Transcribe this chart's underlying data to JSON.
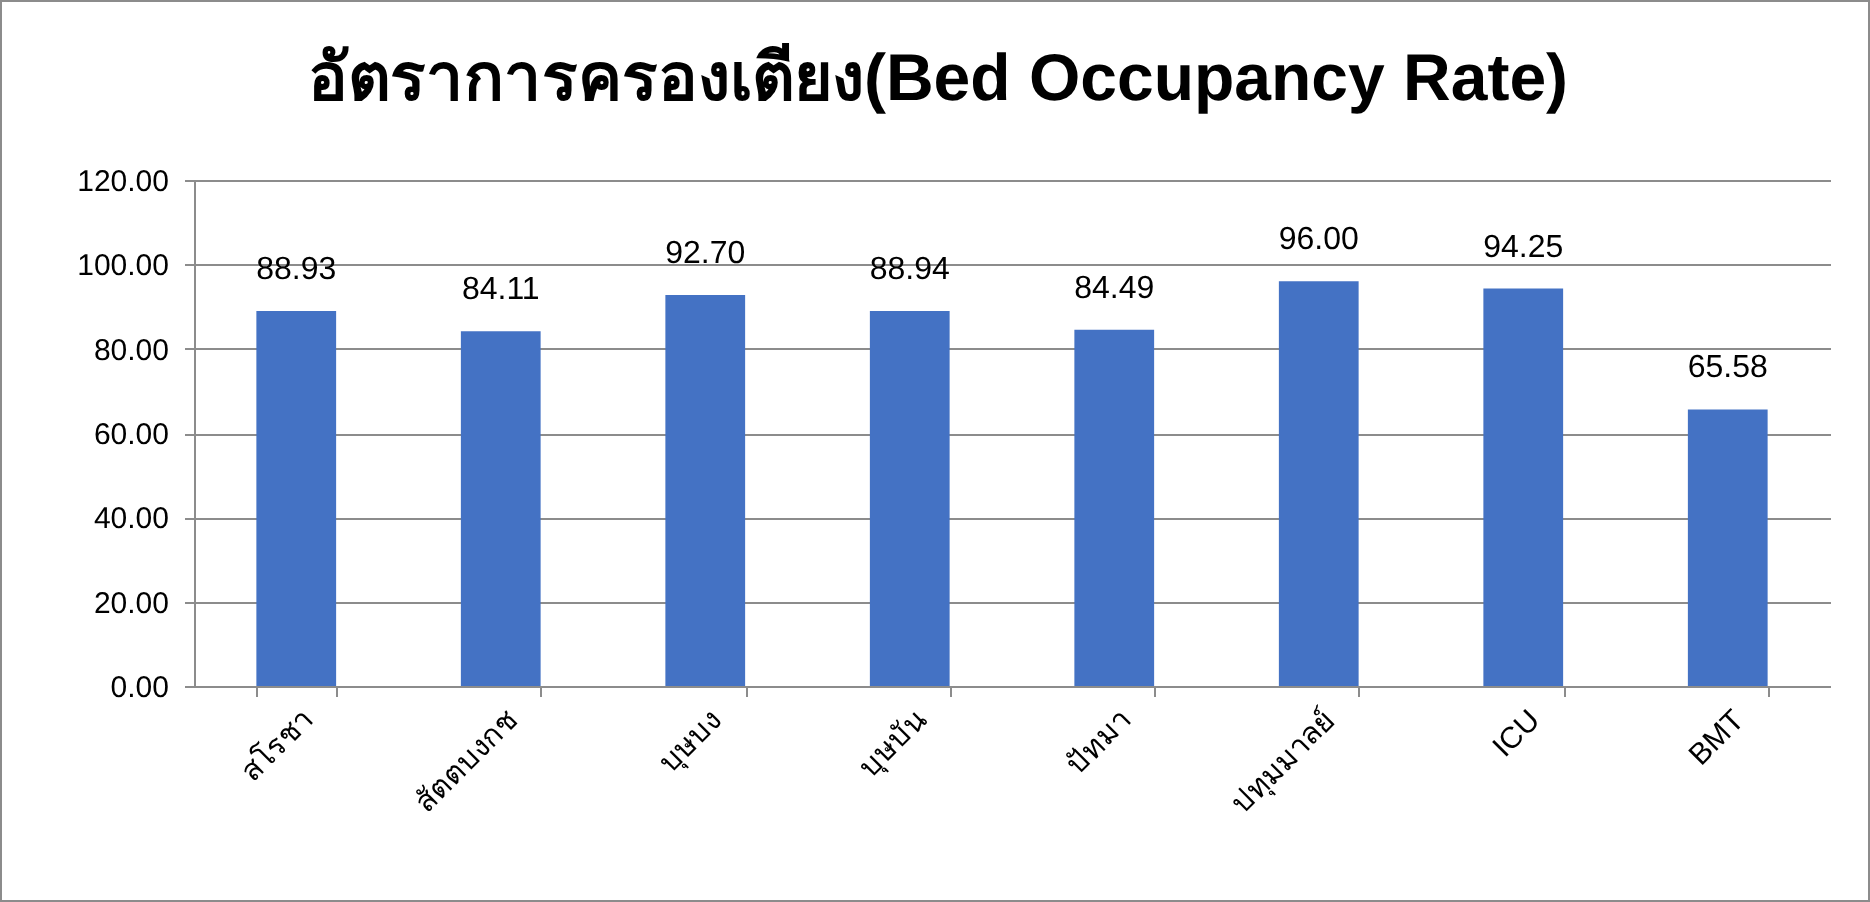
{
  "chart_data": {
    "type": "bar",
    "title": "อัตราการครองเตียง(Bed Occupancy Rate)",
    "categories": [
      "สโรชา",
      "สัตตบงกช",
      "บุษบง",
      "บุษบัน",
      "ปัทมา",
      "ปทุมมาลย์",
      "ICU",
      "BMT"
    ],
    "values": [
      88.93,
      84.11,
      92.7,
      88.94,
      84.49,
      96.0,
      94.25,
      65.58
    ],
    "value_labels": [
      "88.93",
      "84.11",
      "92.70",
      "88.94",
      "84.49",
      "96.00",
      "94.25",
      "65.58"
    ],
    "color": "#4472c4",
    "ylim": [
      0,
      120
    ],
    "yticks": [
      {
        "value": 0,
        "label": "0.00"
      },
      {
        "value": 20,
        "label": "20.00"
      },
      {
        "value": 40,
        "label": "40.00"
      },
      {
        "value": 60,
        "label": "60.00"
      },
      {
        "value": 80,
        "label": "80.00"
      },
      {
        "value": 100,
        "label": "100.00"
      },
      {
        "value": 120,
        "label": "120.00"
      }
    ],
    "grid": "y"
  }
}
